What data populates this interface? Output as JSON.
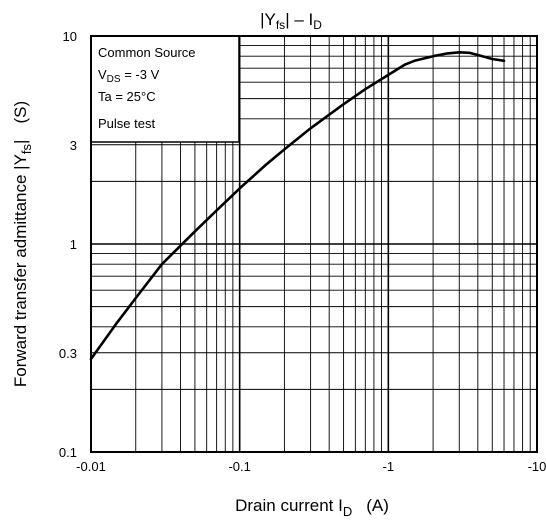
{
  "chart_data": {
    "type": "line",
    "title": "|Yfs| – ID",
    "title_main": "|Y",
    "title_sub": "fs",
    "title_tail": "| – I",
    "title_sub2": "D",
    "xlabel_main": "Drain current   I",
    "xlabel_sub": "D",
    "xlabel_unit": "(A)",
    "ylabel_main": "Forward transfer admittance   |Y",
    "ylabel_sub": "fs",
    "ylabel_tail": "|",
    "ylabel_unit": "(S)",
    "x_scale": "log",
    "y_scale": "log",
    "x_ticks": [
      {
        "value": 0.01,
        "label": "-0.01"
      },
      {
        "value": 0.1,
        "label": "-0.1"
      },
      {
        "value": 1,
        "label": "-1"
      },
      {
        "value": 10,
        "label": "-10"
      }
    ],
    "y_ticks": [
      {
        "value": 0.1,
        "label": "0.1"
      },
      {
        "value": 0.3,
        "label": "0.3"
      },
      {
        "value": 1,
        "label": "1"
      },
      {
        "value": 3,
        "label": "3"
      },
      {
        "value": 10,
        "label": "10"
      }
    ],
    "xlim": [
      0.01,
      10
    ],
    "ylim": [
      0.1,
      10
    ],
    "grid": true,
    "conditions": {
      "line1": "Common Source",
      "line2_main": "V",
      "line2_sub": "DS",
      "line2_tail": " = -3 V",
      "line3": "Ta = 25°C",
      "line4": "Pulse test"
    },
    "series": [
      {
        "x": [
          0.01,
          0.015,
          0.02,
          0.03,
          0.05,
          0.07,
          0.1,
          0.15,
          0.2,
          0.3,
          0.5,
          0.7,
          1.0,
          1.3,
          1.5,
          2.0,
          2.5,
          3.0,
          3.5,
          4.0,
          5.0,
          6.0
        ],
        "y": [
          0.28,
          0.42,
          0.55,
          0.8,
          1.15,
          1.45,
          1.85,
          2.4,
          2.85,
          3.6,
          4.7,
          5.55,
          6.5,
          7.3,
          7.6,
          8.0,
          8.25,
          8.35,
          8.3,
          8.1,
          7.75,
          7.6
        ]
      }
    ]
  }
}
